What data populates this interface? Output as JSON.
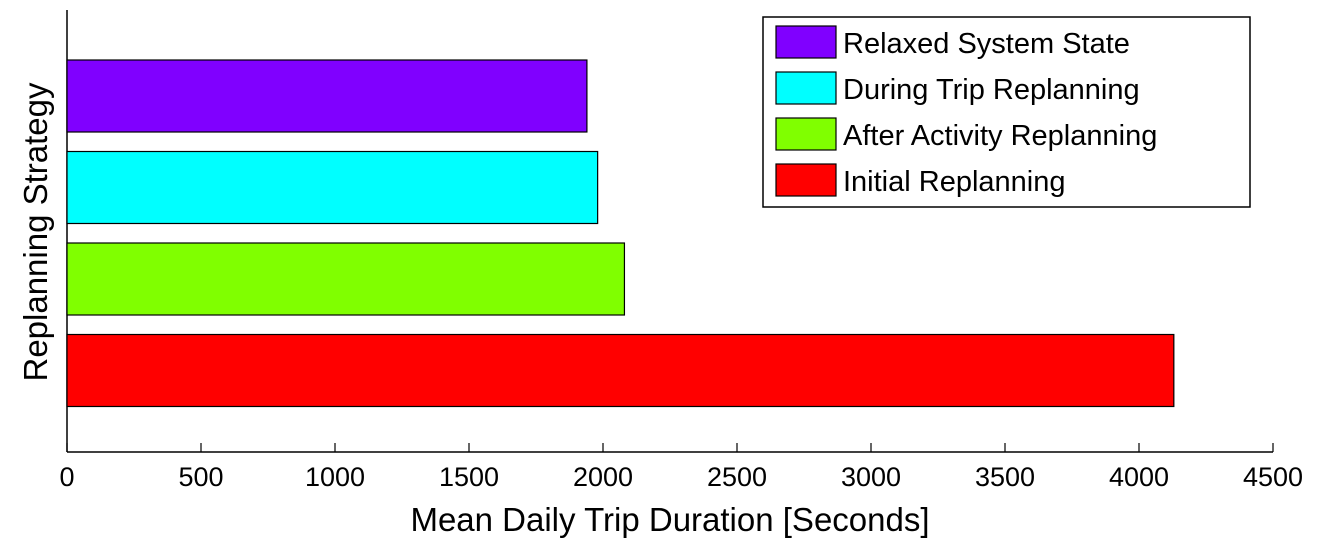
{
  "chart_data": {
    "type": "bar",
    "orientation": "horizontal",
    "xlabel": "Mean Daily Trip Duration [Seconds]",
    "ylabel": "Replanning Strategy",
    "xlim": [
      0,
      4500
    ],
    "xticks": [
      0,
      500,
      1000,
      1500,
      2000,
      2500,
      3000,
      3500,
      4000,
      4500
    ],
    "grid": false,
    "legend_position": "top-right",
    "series": [
      {
        "name": "Relaxed System State",
        "value": 1940,
        "color": "#8000ff"
      },
      {
        "name": "During Trip Replanning",
        "value": 1980,
        "color": "#00ffff"
      },
      {
        "name": "After Activity Replanning",
        "value": 2080,
        "color": "#80ff00"
      },
      {
        "name": "Initial Replanning",
        "value": 4130,
        "color": "#ff0000"
      }
    ]
  }
}
